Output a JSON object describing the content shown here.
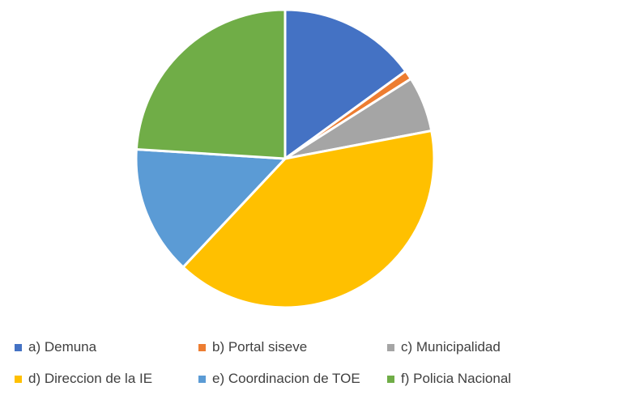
{
  "chart_data": {
    "type": "pie",
    "title": "",
    "categories": [
      "a) Demuna",
      "b) Portal siseve",
      "c) Municipalidad",
      "d) Direccion de la IE",
      "e) Coordinacion de TOE",
      "f) Policia Nacional"
    ],
    "values": [
      15,
      1,
      6,
      40,
      14,
      24
    ],
    "colors": [
      "#4472C4",
      "#ED7D31",
      "#A5A5A5",
      "#FFC000",
      "#5B9BD5",
      "#70AD47"
    ],
    "legend_position": "bottom",
    "start_angle": "12 o'clock",
    "direction": "clockwise"
  }
}
